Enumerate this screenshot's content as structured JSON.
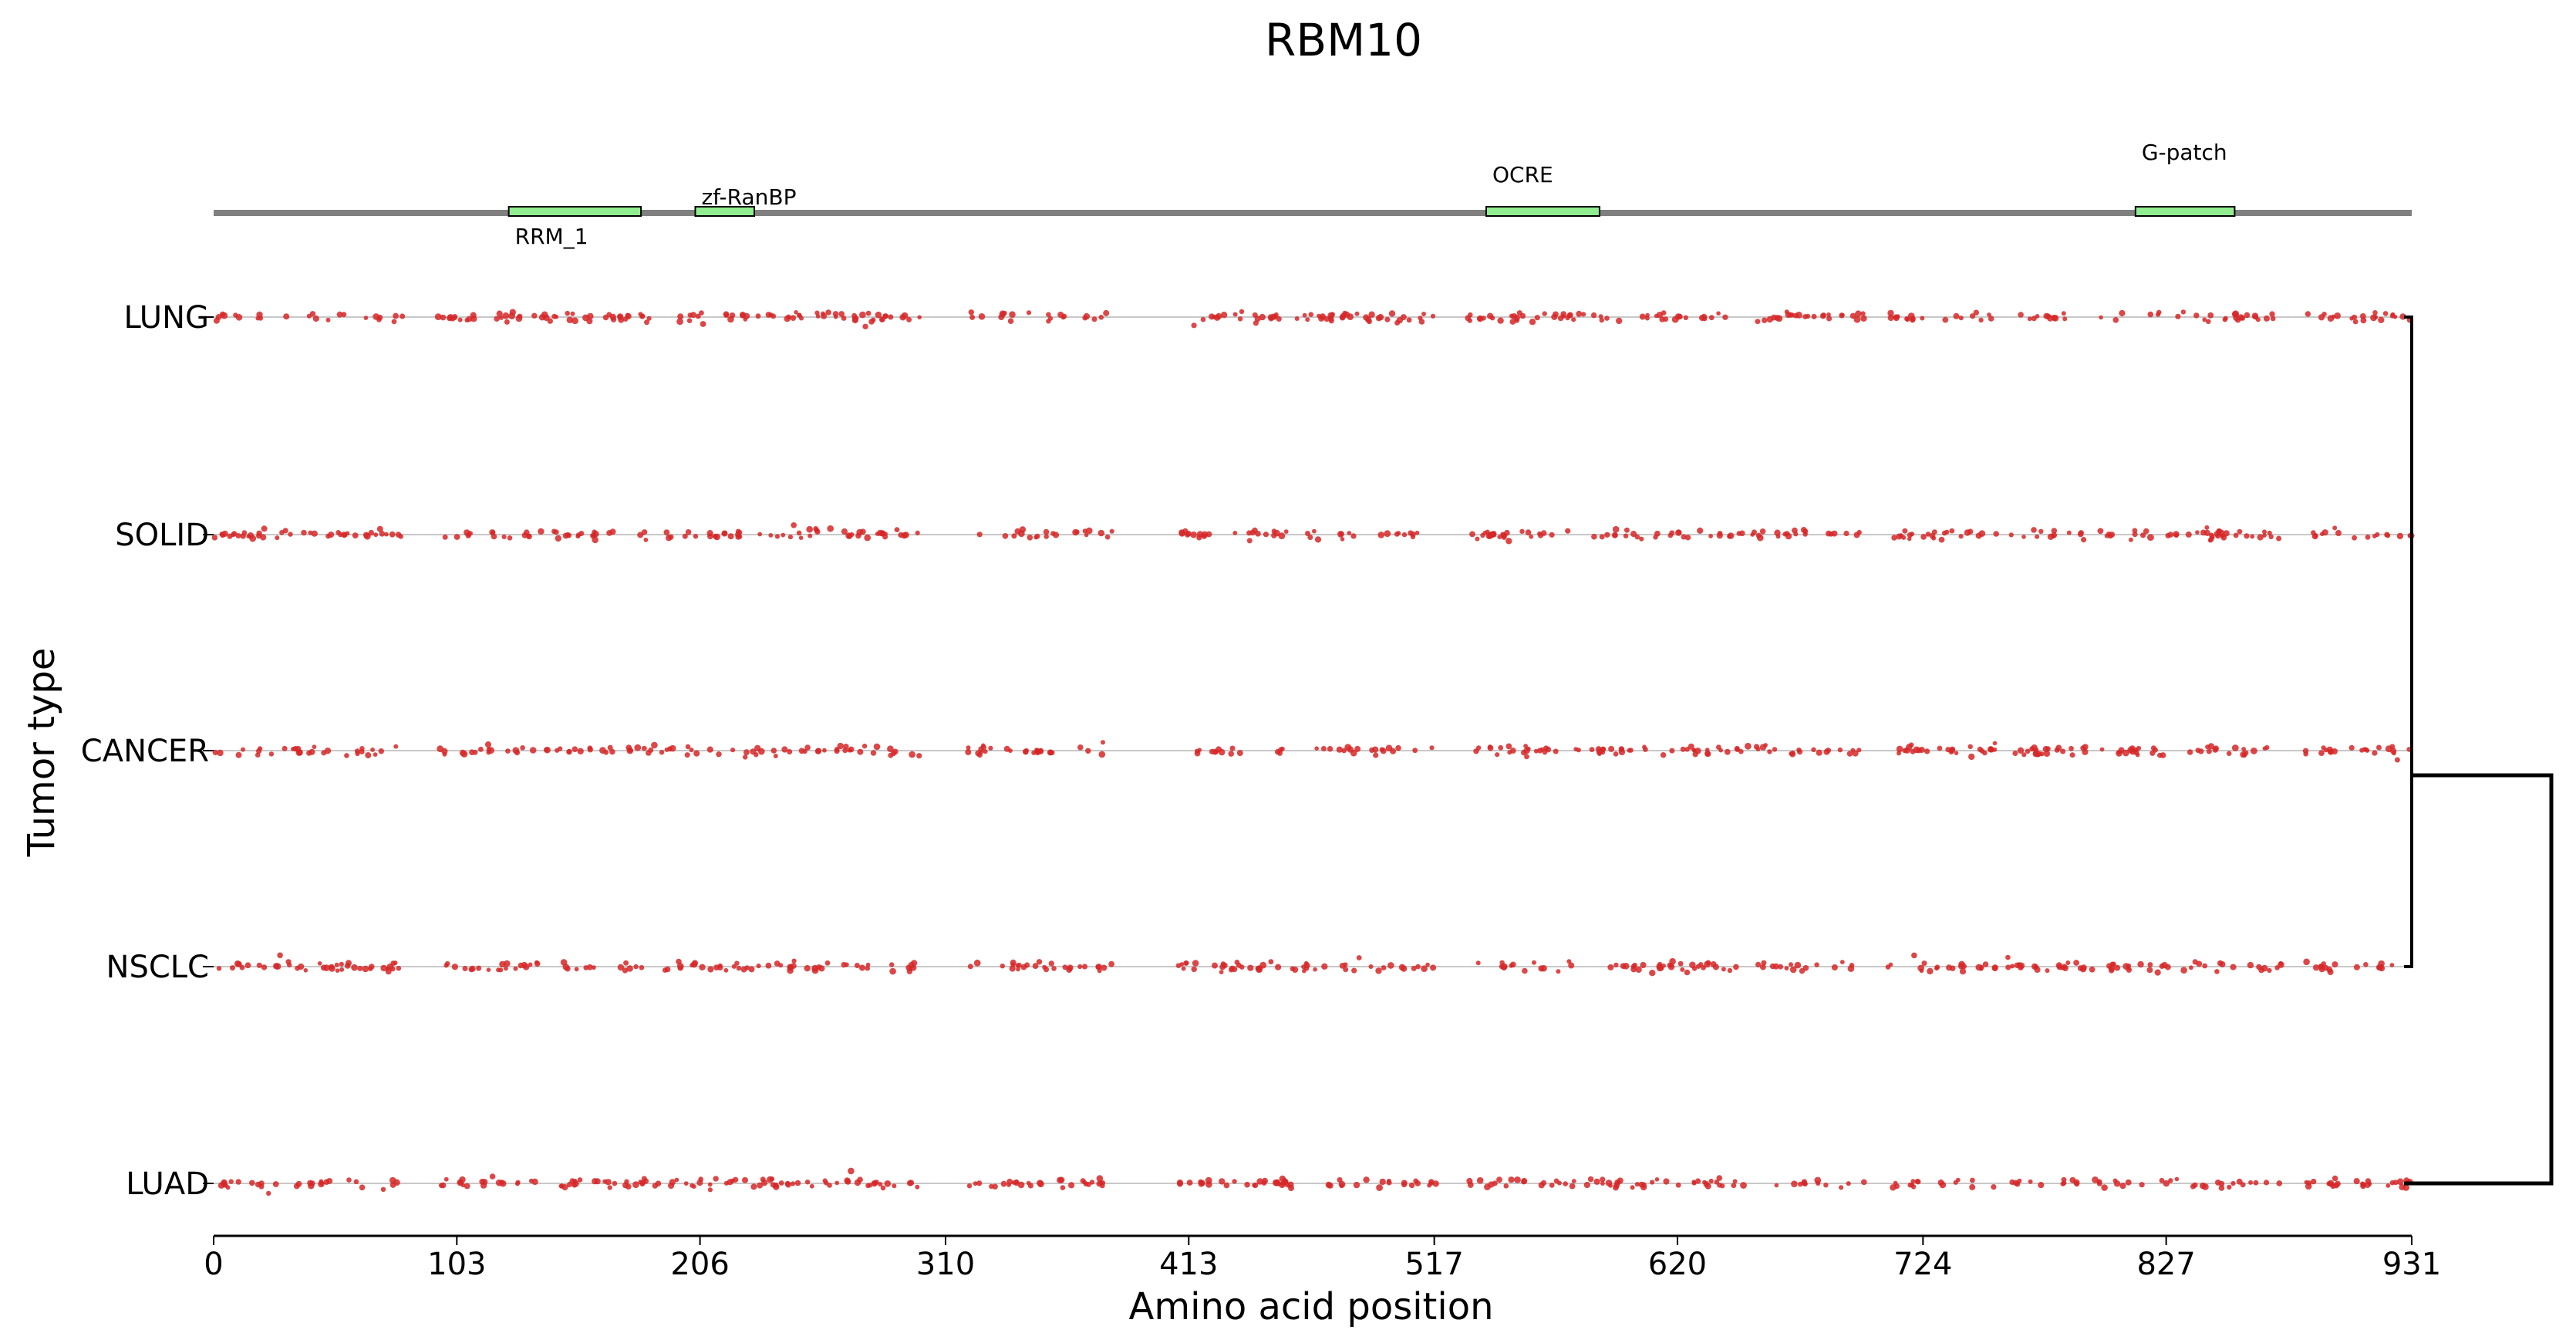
{
  "chart_data": {
    "type": "scatter",
    "title": "RBM10",
    "xlabel": "Amino acid position",
    "ylabel": "Tumor type",
    "xlim": [
      0,
      931
    ],
    "x_ticks": [
      0,
      103,
      206,
      310,
      413,
      517,
      620,
      724,
      827,
      931
    ],
    "categories": [
      "LUNG",
      "SOLID",
      "CANCER",
      "NSCLC",
      "LUAD"
    ],
    "protein_length": 931,
    "domains": [
      {
        "name": "RRM_1",
        "start": 125,
        "end": 181,
        "label_position": "below"
      },
      {
        "name": "zf-RanBP",
        "start": 204,
        "end": 229,
        "label_position": "above"
      },
      {
        "name": "OCRE",
        "start": 539,
        "end": 587,
        "label_position": "above"
      },
      {
        "name": "G-patch",
        "start": 814,
        "end": 856,
        "label_position": "above"
      }
    ],
    "mutation_gaps": [
      [
        80,
        95
      ],
      [
        299,
        319
      ],
      [
        381,
        406
      ],
      [
        518,
        531
      ],
      [
        700,
        709
      ],
      [
        755,
        759
      ],
      [
        876,
        886
      ],
      [
        900,
        905
      ]
    ],
    "mutations_per_track": 360,
    "dendrogram": {
      "links": [
        [
          "LUNG",
          "NSCLC"
        ],
        [
          "(LUNG, NSCLC)",
          "LUAD"
        ]
      ]
    },
    "colors": {
      "mutation": "#d62728",
      "domain_fill": "#90ee90",
      "domain_edge": "#000000",
      "backbone": "#808080",
      "track_line": "#c8c8c8",
      "axis": "#000000"
    },
    "grid": false,
    "legend": "none"
  }
}
